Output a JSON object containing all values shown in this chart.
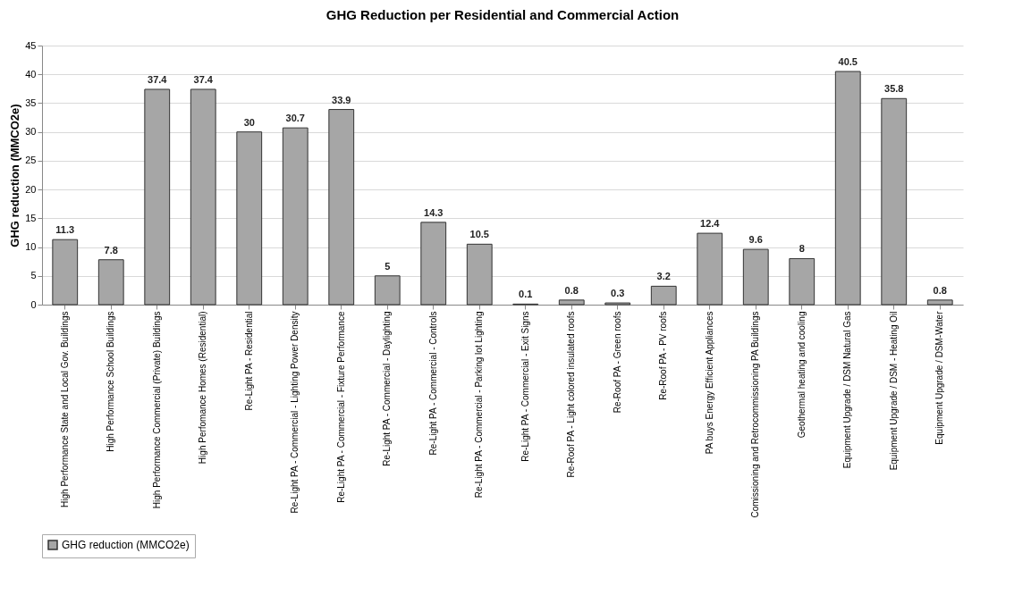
{
  "chart_data": {
    "type": "bar",
    "title": "GHG Reduction per Residential and Commercial Action",
    "ylabel": "GHG reduction (MMCO2e)",
    "categories": [
      "High Performance State and Local Gov. Buildings",
      "High Performance School Buildings",
      "High Performance Commercial (Private) Buildings",
      "High Perfomance Homes (Residential)",
      "Re-Light PA - Residential",
      "Re-Light PA - Commercial - Lighting Power Density",
      "Re-Light PA - Commercial - Fixture Performance",
      "Re-Light PA - Commercial - Daylighting",
      "Re-Light PA - Commercial - Controls",
      "Re-Light PA - Commercial - Parking lot Lighting",
      "Re-Light PA - Commercial - Exit Signs",
      "Re-Roof PA - Light colored insulated roofs",
      "Re-Roof PA - Green roofs",
      "Re-Roof PA - PV roofs",
      "PA buys Energy Efficient Appliances",
      "Comissioning and Retrocommissioning PA Buildings",
      "Geothermal heating and cooling",
      "Equipment Upgrade / DSM Natural Gas",
      "Equipment Upgrade / DSM - Heating Oil",
      "Equipment Upgrade / DSM-Water"
    ],
    "series": [
      {
        "name": "GHG reduction (MMCO2e)",
        "color": "#a6a6a6",
        "values": [
          11.3,
          7.8,
          37.4,
          37.4,
          30,
          30.7,
          33.9,
          5,
          14.3,
          10.5,
          0.1,
          0.8,
          0.3,
          3.2,
          12.4,
          9.6,
          8,
          40.5,
          35.8,
          0.8
        ]
      }
    ],
    "ylim": [
      0,
      45
    ],
    "yticks": [
      0,
      5,
      10,
      15,
      20,
      25,
      30,
      35,
      40,
      45
    ],
    "grid": "y",
    "legend": "bottom",
    "data_labels": true
  }
}
